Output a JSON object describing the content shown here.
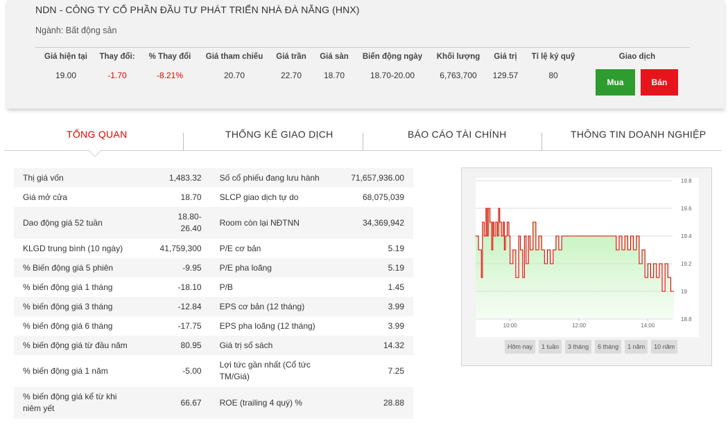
{
  "header": {
    "company": "NDN - CÔNG TY CỔ PHẦN ĐẦU TƯ PHÁT TRIỂN NHÀ ĐÀ NẴNG (HNX)",
    "industry": "Ngành: Bất động sản",
    "stats": [
      {
        "label": "Giá hiện tại",
        "value": "19.00"
      },
      {
        "label": "Thay đổi:",
        "value": "-1.70"
      },
      {
        "label": "% Thay đổi",
        "value": "-8.21%"
      },
      {
        "label": "Giá tham chiếu",
        "value": "20.70"
      },
      {
        "label": "Giá trần",
        "value": "22.70"
      },
      {
        "label": "Giá sàn",
        "value": "18.70"
      },
      {
        "label": "Biến động ngày",
        "value": "18.70-20.00"
      },
      {
        "label": "Khối lượng",
        "value": "6,763,700"
      },
      {
        "label": "Giá trị",
        "value": "129.57"
      },
      {
        "label": "Tỉ lệ ký quỹ",
        "value": "80"
      }
    ],
    "trade_label": "Giao dịch",
    "buy_label": "Mua",
    "sell_label": "Bán"
  },
  "tabs": [
    {
      "label": "TỔNG QUAN",
      "active": true
    },
    {
      "label": "THỐNG KÊ GIAO DỊCH",
      "active": false
    },
    {
      "label": "BÁO CÁO TÀI CHÍNH",
      "active": false
    },
    {
      "label": "THÔNG TIN DOANH NGHIỆP",
      "active": false
    }
  ],
  "overview": [
    {
      "l1": "Thị giá vốn",
      "v1": "1,483.32",
      "l2": "Số cổ phiếu đang lưu hành",
      "v2": "71,657,936.00"
    },
    {
      "l1": "Giá mở cửa",
      "v1": "18.70",
      "l2": "SLCP giao dịch tự do",
      "v2": "68,075,039"
    },
    {
      "l1": "Dao động giá 52 tuần",
      "v1": "18.80-\n26.40",
      "l2": "Room còn lại NĐTNN",
      "v2": "34,369,942"
    },
    {
      "l1": "KLGD trung bình (10 ngày)",
      "v1": "41,759,300",
      "l2": "P/E cơ bản",
      "v2": "5.19"
    },
    {
      "l1": "% Biến động giá 5 phiên",
      "v1": "-9.95",
      "l2": "P/E pha loãng",
      "v2": "5.19"
    },
    {
      "l1": "% biến động giá 1 tháng",
      "v1": "-18.10",
      "l2": "P/B",
      "v2": "1.45"
    },
    {
      "l1": "% biến động giá 3 tháng",
      "v1": "-12.84",
      "l2": "EPS cơ bản (12 tháng)",
      "v2": "3.99"
    },
    {
      "l1": "% biến động giá 6 tháng",
      "v1": "-17.75",
      "l2": "EPS pha loãng (12 tháng)",
      "v2": "3.99"
    },
    {
      "l1": "% biến động giá từ đầu năm",
      "v1": "80.95",
      "l2": "Giá trị sổ sách",
      "v2": "14.32"
    },
    {
      "l1": "% biến động giá 1 năm",
      "v1": "-5.00",
      "l2": "Lợi tức gần nhất (Cổ tức TM/Giá)",
      "v2": "7.25"
    },
    {
      "l1": "% biến động giá kể từ khi niêm yết",
      "v1": "66.67",
      "l2": "ROE (trailing 4 quý) %",
      "v2": "28.88"
    }
  ],
  "chart_periods": [
    "Hôm nay",
    "1 tuần",
    "3 tháng",
    "6 tháng",
    "1 năm",
    "10 năm"
  ],
  "colors": {
    "negative": "#e60000",
    "buy": "#2e9c2e",
    "sell": "#e8141c",
    "line": "#e00000",
    "fill": "#b9efb0"
  },
  "chart_data": {
    "type": "area",
    "title": "",
    "xlabel": "",
    "ylabel": "",
    "x_ticks": [
      "10:00",
      "12:00",
      "14:00"
    ],
    "y_ticks": [
      18.8,
      19,
      19.2,
      19.4,
      19.6,
      19.8
    ],
    "ylim": [
      18.8,
      19.8
    ],
    "xlim": [
      "09:00",
      "15:00"
    ],
    "series": [
      {
        "x": [
          "09:00",
          "09:05",
          "09:10",
          "09:12",
          "09:15",
          "09:18",
          "09:20",
          "09:22",
          "09:25",
          "09:28",
          "09:30",
          "09:32",
          "09:35",
          "09:38",
          "09:40",
          "09:42",
          "09:45",
          "09:48",
          "09:50",
          "09:52",
          "09:55",
          "09:58",
          "10:00",
          "10:05",
          "10:10",
          "10:15",
          "10:18",
          "10:22",
          "10:25",
          "10:28",
          "10:32",
          "10:35",
          "10:40",
          "10:45",
          "10:50",
          "10:55",
          "11:00",
          "11:05",
          "11:10",
          "11:15",
          "11:20",
          "11:25",
          "11:30",
          "11:40",
          "12:00",
          "12:30",
          "13:00",
          "13:05",
          "13:10",
          "13:15",
          "13:20",
          "13:25",
          "13:30",
          "13:35",
          "13:40",
          "13:45",
          "13:50",
          "13:55",
          "14:00",
          "14:05",
          "14:10",
          "14:15",
          "14:20",
          "14:25",
          "14:30",
          "14:35",
          "14:40",
          "14:45"
        ],
        "values": [
          19.4,
          19.3,
          19.1,
          19.5,
          19.4,
          19.6,
          19.4,
          19.6,
          19.5,
          19.3,
          19.5,
          19.4,
          19.5,
          19.4,
          19.6,
          19.5,
          19.4,
          19.5,
          19.3,
          19.4,
          19.5,
          19.4,
          19.2,
          19.3,
          19.1,
          19.4,
          19.3,
          19.1,
          19.4,
          19.2,
          19.4,
          19.3,
          19.5,
          19.3,
          19.4,
          19.3,
          19.2,
          19.3,
          19.2,
          19.3,
          19.4,
          19.3,
          19.4,
          19.4,
          19.4,
          19.4,
          19.4,
          19.3,
          19.4,
          19.3,
          19.4,
          19.3,
          19.4,
          19.3,
          19.4,
          19.2,
          19.3,
          19.1,
          19.2,
          19.1,
          19.2,
          19.1,
          19.2,
          19.0,
          19.2,
          19.1,
          19.0,
          19.0
        ]
      }
    ],
    "grid": true,
    "legend": "none"
  }
}
